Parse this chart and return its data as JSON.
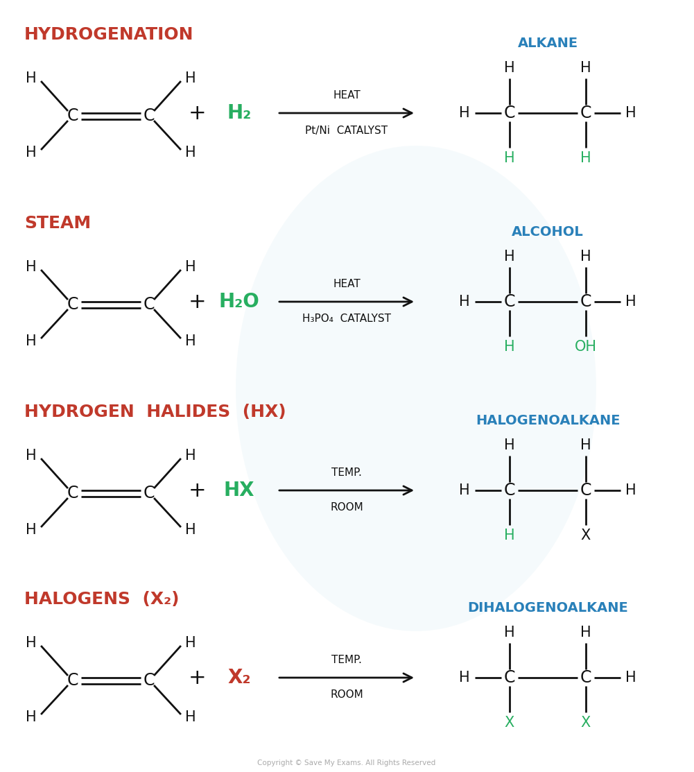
{
  "bg_color": "#ffffff",
  "black": "#111111",
  "green": "#27ae60",
  "blue": "#2980b9",
  "red": "#c0392b",
  "sections": [
    {
      "title": "HYDROGENATION",
      "reagent": "H₂",
      "condition1": "Pt/Ni  CATALYST",
      "condition2": "HEAT",
      "product_label": "ALKANE",
      "top_labels": [
        "H",
        "H"
      ],
      "bottom_labels": [
        "H",
        "H"
      ],
      "reagent_color": "green",
      "top_left_color": "green",
      "top_right_color": "green"
    },
    {
      "title": "STEAM",
      "reagent": "H₂O",
      "condition1": "H₃PO₄  CATALYST",
      "condition2": "HEAT",
      "product_label": "ALCOHOL",
      "top_labels": [
        "H",
        "OH"
      ],
      "bottom_labels": [
        "H",
        "H"
      ],
      "reagent_color": "green",
      "top_left_color": "green",
      "top_right_color": "green"
    },
    {
      "title": "HYDROGEN  HALIDES  (HX)",
      "reagent": "HX",
      "condition1": "ROOM",
      "condition2": "TEMP.",
      "product_label": "HALOGENOALKANE",
      "top_labels": [
        "H",
        "X"
      ],
      "bottom_labels": [
        "H",
        "H"
      ],
      "reagent_color": "green",
      "top_left_color": "green",
      "top_right_color": "black"
    },
    {
      "title": "HALOGENS  (X₂)",
      "reagent": "X₂",
      "condition1": "ROOM",
      "condition2": "TEMP.",
      "product_label": "DIHALOGENOALKANE",
      "top_labels": [
        "X",
        "X"
      ],
      "bottom_labels": [
        "H",
        "H"
      ],
      "reagent_color": "red",
      "top_left_color": "green",
      "top_right_color": "green"
    }
  ],
  "copyright": "Copyright © Save My Exams. All Rights Reserved"
}
